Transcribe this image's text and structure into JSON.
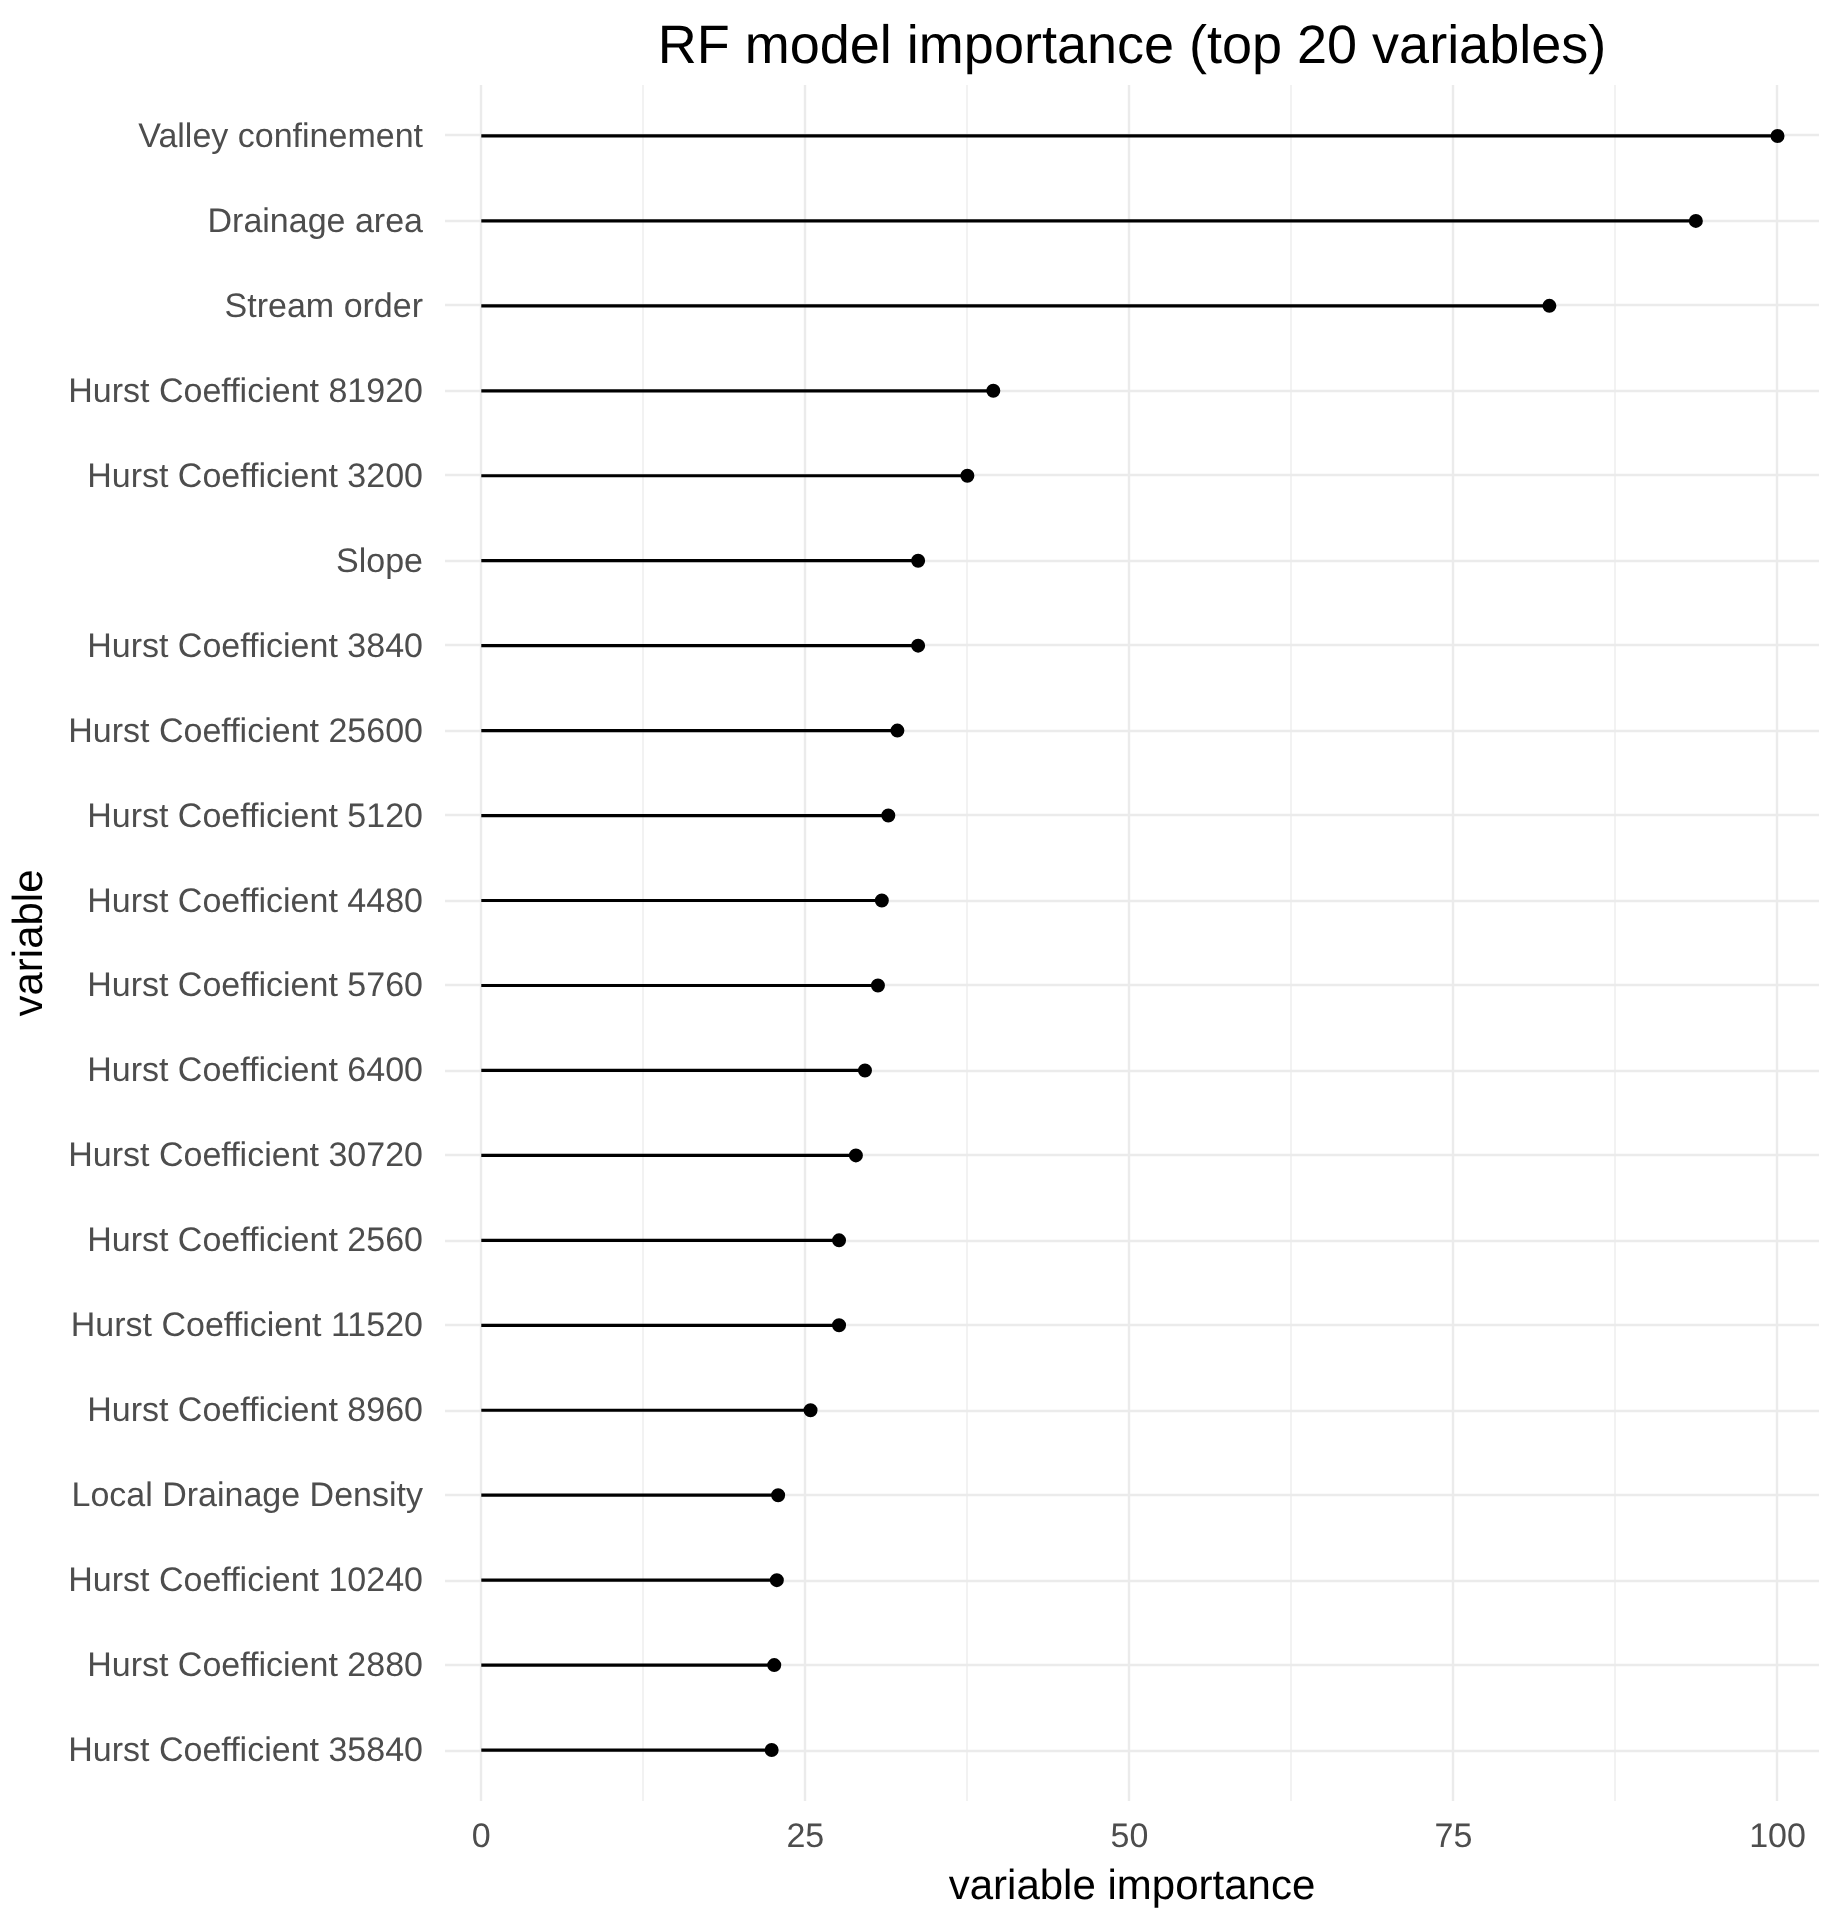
{
  "chart_data": {
    "type": "lollipop",
    "orientation": "horizontal",
    "title": "RF model importance (top 20 variables)",
    "xlabel": "variable importance",
    "ylabel": "variable",
    "categories": [
      "Valley confinement",
      "Drainage area",
      "Stream order",
      "Hurst Coefficient 81920",
      "Hurst Coefficient 3200",
      "Slope",
      "Hurst Coefficient 3840",
      "Hurst Coefficient 25600",
      "Hurst Coefficient 5120",
      "Hurst Coefficient 4480",
      "Hurst Coefficient 5760",
      "Hurst Coefficient 6400",
      "Hurst Coefficient 30720",
      "Hurst Coefficient 2560",
      "Hurst Coefficient 11520",
      "Hurst Coefficient 8960",
      "Local Drainage Density",
      "Hurst Coefficient 10240",
      "Hurst Coefficient 2880",
      "Hurst Coefficient 35840"
    ],
    "values": [
      100,
      93.7,
      82.4,
      39.5,
      37.5,
      33.7,
      33.7,
      32.1,
      31.4,
      30.9,
      30.6,
      29.6,
      28.9,
      27.6,
      27.6,
      25.4,
      22.9,
      22.8,
      22.6,
      22.4
    ],
    "color": "#000000",
    "marker": "circle",
    "xlim": [
      -2.8,
      103.2
    ],
    "xticks": [
      0,
      25,
      50,
      75,
      100
    ],
    "grid": true
  }
}
